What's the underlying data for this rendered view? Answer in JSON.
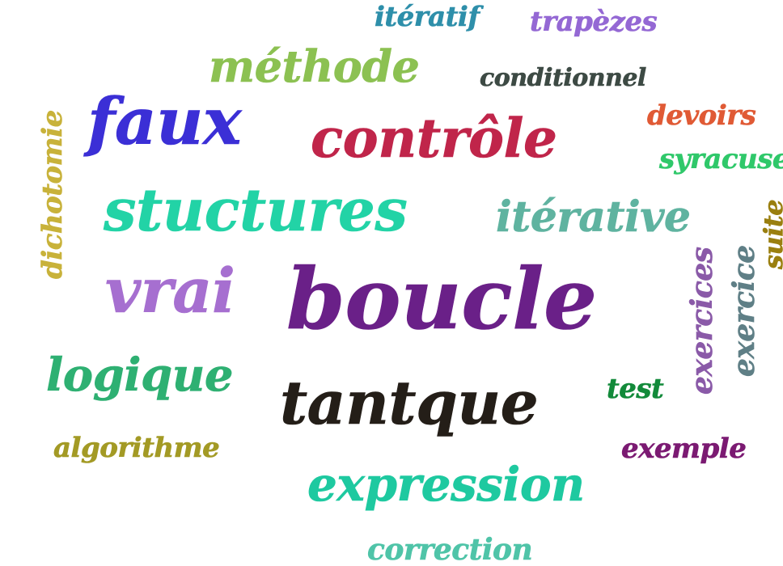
{
  "words": {
    "w1": {
      "text": "itératif",
      "color": "#2e8faa"
    },
    "w2": {
      "text": "trapèzes",
      "color": "#9468d4"
    },
    "w3": {
      "text": "méthode",
      "color": "#8cc152"
    },
    "w4": {
      "text": "conditionnel",
      "color": "#3d4a44"
    },
    "w5": {
      "text": "faux",
      "color": "#3b2fd6"
    },
    "w6": {
      "text": "contrôle",
      "color": "#c0254a"
    },
    "w7": {
      "text": "devoirs",
      "color": "#e05a35"
    },
    "w8": {
      "text": "syracuse",
      "color": "#2fc86a"
    },
    "w9": {
      "text": "dichotomie",
      "color": "#c8b23a"
    },
    "w10": {
      "text": "stuctures",
      "color": "#22d3a6"
    },
    "w11": {
      "text": "itérative",
      "color": "#5fb3a0"
    },
    "w12": {
      "text": "suite",
      "color": "#9a7f0f"
    },
    "w13": {
      "text": "vrai",
      "color": "#a66fd0"
    },
    "w14": {
      "text": "boucle",
      "color": "#6a2088"
    },
    "w15": {
      "text": "exercices",
      "color": "#8a5aa8"
    },
    "w16": {
      "text": "exercice",
      "color": "#5f7f86"
    },
    "w17": {
      "text": "logique",
      "color": "#2eb072"
    },
    "w18": {
      "text": "test",
      "color": "#128a3a"
    },
    "w19": {
      "text": "tantque",
      "color": "#241e18"
    },
    "w20": {
      "text": "algorithme",
      "color": "#a39a25"
    },
    "w21": {
      "text": "exemple",
      "color": "#7b1a72"
    },
    "w22": {
      "text": "expression",
      "color": "#1ec9a0"
    },
    "w23": {
      "text": "correction",
      "color": "#4fc4a8"
    }
  }
}
